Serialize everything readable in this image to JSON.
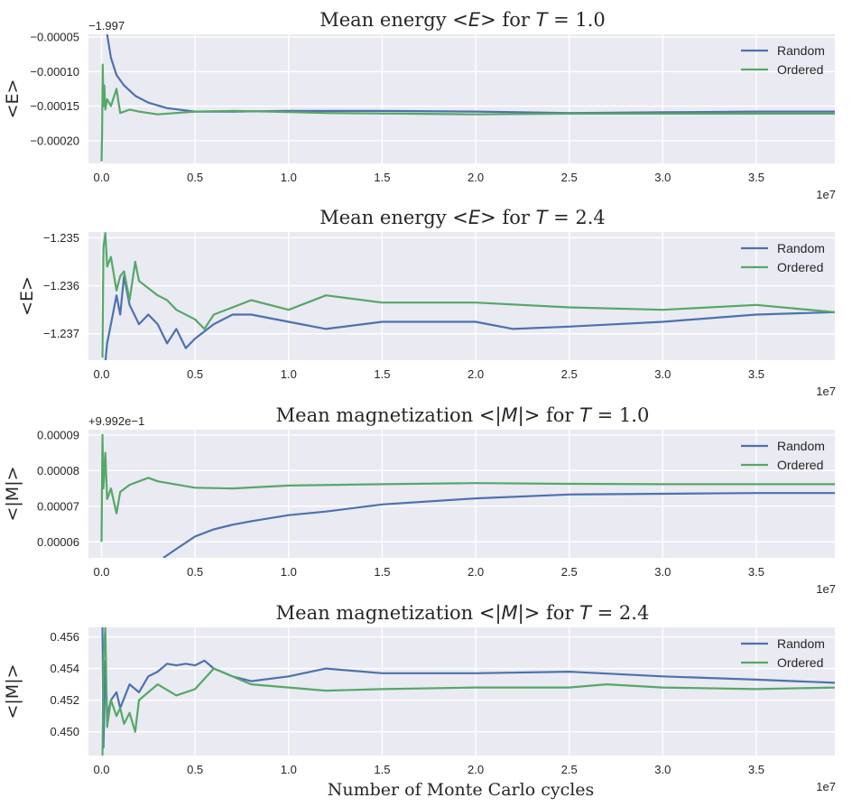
{
  "chart_data": [
    {
      "type": "line",
      "title": "Mean energy <E> for T = 1.0",
      "ylabel": "<E>",
      "xlabel": "",
      "x_scale_label": "1e7",
      "y_offset_label": "−1.997",
      "xlim": [
        -0.07,
        3.92
      ],
      "ylim": [
        -0.000233,
        -4.6e-05
      ],
      "xticks": [
        "0.0",
        "0.5",
        "1.0",
        "1.5",
        "2.0",
        "2.5",
        "3.0",
        "3.5"
      ],
      "yticks": [
        "−0.00005",
        "−0.00010",
        "−0.00015",
        "−0.00020"
      ],
      "ytick_values": [
        -5e-05,
        -0.0001,
        -0.00015,
        -0.0002
      ],
      "legend_position": "top-right",
      "series": [
        {
          "name": "Random",
          "color": "#4c72b0",
          "x": [
            0.03,
            0.05,
            0.08,
            0.12,
            0.18,
            0.25,
            0.35,
            0.5,
            0.7,
            1.0,
            1.5,
            2.0,
            2.5,
            3.0,
            3.5,
            3.92
          ],
          "y": [
            -4.6e-05,
            -8e-05,
            -0.000105,
            -0.00012,
            -0.000135,
            -0.000145,
            -0.000153,
            -0.000158,
            -0.000158,
            -0.000157,
            -0.000157,
            -0.000158,
            -0.00016,
            -0.000159,
            -0.000158,
            -0.000158
          ]
        },
        {
          "name": "Ordered",
          "color": "#55a868",
          "x": [
            0.0,
            0.003,
            0.006,
            0.01,
            0.015,
            0.02,
            0.03,
            0.05,
            0.08,
            0.1,
            0.15,
            0.2,
            0.3,
            0.5,
            0.7,
            0.9,
            1.2,
            1.6,
            2.0,
            2.5,
            3.0,
            3.5,
            3.92
          ],
          "y": [
            -0.00023,
            -0.00019,
            -9e-05,
            -0.00015,
            -0.00012,
            -0.000155,
            -0.00014,
            -0.00015,
            -0.000125,
            -0.00016,
            -0.000155,
            -0.000158,
            -0.000162,
            -0.000158,
            -0.000157,
            -0.000158,
            -0.00016,
            -0.000161,
            -0.000162,
            -0.000161,
            -0.000161,
            -0.000161,
            -0.000161
          ]
        }
      ]
    },
    {
      "type": "line",
      "title": "Mean energy <E> for T = 2.4",
      "ylabel": "<E>",
      "xlabel": "",
      "x_scale_label": "1e7",
      "xlim": [
        -0.07,
        3.92
      ],
      "ylim": [
        -1.23755,
        -1.23488
      ],
      "xticks": [
        "0.0",
        "0.5",
        "1.0",
        "1.5",
        "2.0",
        "2.5",
        "3.0",
        "3.5"
      ],
      "yticks": [
        "−1.235",
        "−1.236",
        "−1.237"
      ],
      "ytick_values": [
        -1.235,
        -1.236,
        -1.237
      ],
      "legend_position": "top-right",
      "series": [
        {
          "name": "Random",
          "color": "#4c72b0",
          "x": [
            0.02,
            0.03,
            0.05,
            0.08,
            0.1,
            0.12,
            0.15,
            0.2,
            0.25,
            0.3,
            0.35,
            0.4,
            0.45,
            0.5,
            0.6,
            0.7,
            0.8,
            1.0,
            1.2,
            1.5,
            2.0,
            2.2,
            2.5,
            3.0,
            3.5,
            3.92
          ],
          "y": [
            -1.2376,
            -1.2372,
            -1.2368,
            -1.2362,
            -1.2366,
            -1.2358,
            -1.2364,
            -1.2368,
            -1.2366,
            -1.2368,
            -1.2372,
            -1.2369,
            -1.2373,
            -1.2371,
            -1.2368,
            -1.2366,
            -1.2366,
            -1.23675,
            -1.2369,
            -1.23675,
            -1.23675,
            -1.2369,
            -1.23685,
            -1.23675,
            -1.2366,
            -1.23655
          ]
        },
        {
          "name": "Ordered",
          "color": "#55a868",
          "x": [
            0.005,
            0.01,
            0.02,
            0.03,
            0.05,
            0.08,
            0.1,
            0.12,
            0.15,
            0.18,
            0.2,
            0.3,
            0.35,
            0.4,
            0.5,
            0.55,
            0.6,
            0.8,
            1.0,
            1.2,
            1.5,
            2.0,
            2.5,
            3.0,
            3.5,
            3.92
          ],
          "y": [
            -1.2375,
            -1.2352,
            -1.2349,
            -1.2356,
            -1.2354,
            -1.2361,
            -1.2358,
            -1.2357,
            -1.2363,
            -1.2355,
            -1.2359,
            -1.2362,
            -1.2363,
            -1.2365,
            -1.2367,
            -1.2369,
            -1.2366,
            -1.2363,
            -1.2365,
            -1.2362,
            -1.23635,
            -1.23635,
            -1.23645,
            -1.2365,
            -1.2364,
            -1.23655
          ]
        }
      ]
    },
    {
      "type": "line",
      "title": "Mean magnetization <|M|> for T = 1.0",
      "ylabel": "<|M|>",
      "xlabel": "",
      "x_scale_label": "1e7",
      "y_offset_label": "+9.992e−1",
      "xlim": [
        -0.07,
        3.92
      ],
      "ylim": [
        5.55e-05,
        9.15e-05
      ],
      "xticks": [
        "0.0",
        "0.5",
        "1.0",
        "1.5",
        "2.0",
        "2.5",
        "3.0",
        "3.5"
      ],
      "yticks": [
        "0.00009",
        "0.00008",
        "0.00007",
        "0.00006"
      ],
      "ytick_values": [
        9e-05,
        8e-05,
        7e-05,
        6e-05
      ],
      "legend_position": "top-right",
      "series": [
        {
          "name": "Random",
          "color": "#4c72b0",
          "x": [
            0.33,
            0.4,
            0.5,
            0.6,
            0.7,
            0.8,
            1.0,
            1.2,
            1.5,
            2.0,
            2.5,
            3.0,
            3.5,
            3.92
          ],
          "y": [
            5.55e-05,
            5.8e-05,
            6.15e-05,
            6.35e-05,
            6.48e-05,
            6.58e-05,
            6.75e-05,
            6.85e-05,
            7.05e-05,
            7.22e-05,
            7.33e-05,
            7.35e-05,
            7.37e-05,
            7.37e-05
          ]
        },
        {
          "name": "Ordered",
          "color": "#55a868",
          "x": [
            0.0,
            0.005,
            0.01,
            0.02,
            0.03,
            0.05,
            0.08,
            0.1,
            0.15,
            0.2,
            0.25,
            0.3,
            0.5,
            0.7,
            1.0,
            1.5,
            2.0,
            2.5,
            3.0,
            3.5,
            3.92
          ],
          "y": [
            6e-05,
            9e-05,
            7.5e-05,
            8.5e-05,
            7.2e-05,
            7.5e-05,
            6.8e-05,
            7.4e-05,
            7.6e-05,
            7.7e-05,
            7.8e-05,
            7.7e-05,
            7.52e-05,
            7.5e-05,
            7.58e-05,
            7.62e-05,
            7.65e-05,
            7.63e-05,
            7.62e-05,
            7.62e-05,
            7.62e-05
          ]
        }
      ]
    },
    {
      "type": "line",
      "title": "Mean magnetization <|M|> for T = 2.4",
      "ylabel": "<|M|>",
      "xlabel": "Number of Monte Carlo cycles",
      "x_scale_label": "1e7",
      "xlim": [
        -0.07,
        3.92
      ],
      "ylim": [
        0.4485,
        0.4566
      ],
      "xticks": [
        "0.0",
        "0.5",
        "1.0",
        "1.5",
        "2.0",
        "2.5",
        "3.0",
        "3.5"
      ],
      "yticks": [
        "0.456",
        "0.454",
        "0.452",
        "0.450"
      ],
      "ytick_values": [
        0.456,
        0.454,
        0.452,
        0.45
      ],
      "legend_position": "top-right",
      "series": [
        {
          "name": "Random",
          "color": "#4c72b0",
          "x": [
            0.005,
            0.01,
            0.02,
            0.03,
            0.05,
            0.08,
            0.1,
            0.15,
            0.2,
            0.25,
            0.3,
            0.35,
            0.4,
            0.45,
            0.5,
            0.55,
            0.6,
            0.7,
            0.8,
            1.0,
            1.2,
            1.5,
            2.0,
            2.5,
            3.0,
            3.5,
            3.92
          ],
          "y": [
            0.4566,
            0.449,
            0.4545,
            0.451,
            0.452,
            0.4525,
            0.4515,
            0.453,
            0.4525,
            0.4535,
            0.4538,
            0.4543,
            0.4542,
            0.4543,
            0.4542,
            0.4545,
            0.454,
            0.4535,
            0.4532,
            0.4535,
            0.454,
            0.4537,
            0.4537,
            0.4538,
            0.4535,
            0.4533,
            0.4531
          ]
        },
        {
          "name": "Ordered",
          "color": "#55a868",
          "x": [
            0.005,
            0.01,
            0.02,
            0.03,
            0.05,
            0.08,
            0.1,
            0.12,
            0.15,
            0.18,
            0.2,
            0.25,
            0.3,
            0.4,
            0.5,
            0.6,
            0.7,
            0.8,
            1.0,
            1.2,
            1.5,
            2.0,
            2.5,
            2.7,
            3.0,
            3.5,
            3.92
          ],
          "y": [
            0.4485,
            0.4545,
            0.4566,
            0.4503,
            0.452,
            0.451,
            0.4515,
            0.4505,
            0.4512,
            0.45,
            0.452,
            0.4525,
            0.453,
            0.4523,
            0.4527,
            0.454,
            0.4535,
            0.453,
            0.4528,
            0.4526,
            0.4527,
            0.4528,
            0.4528,
            0.453,
            0.4528,
            0.4527,
            0.4528
          ]
        }
      ]
    }
  ]
}
